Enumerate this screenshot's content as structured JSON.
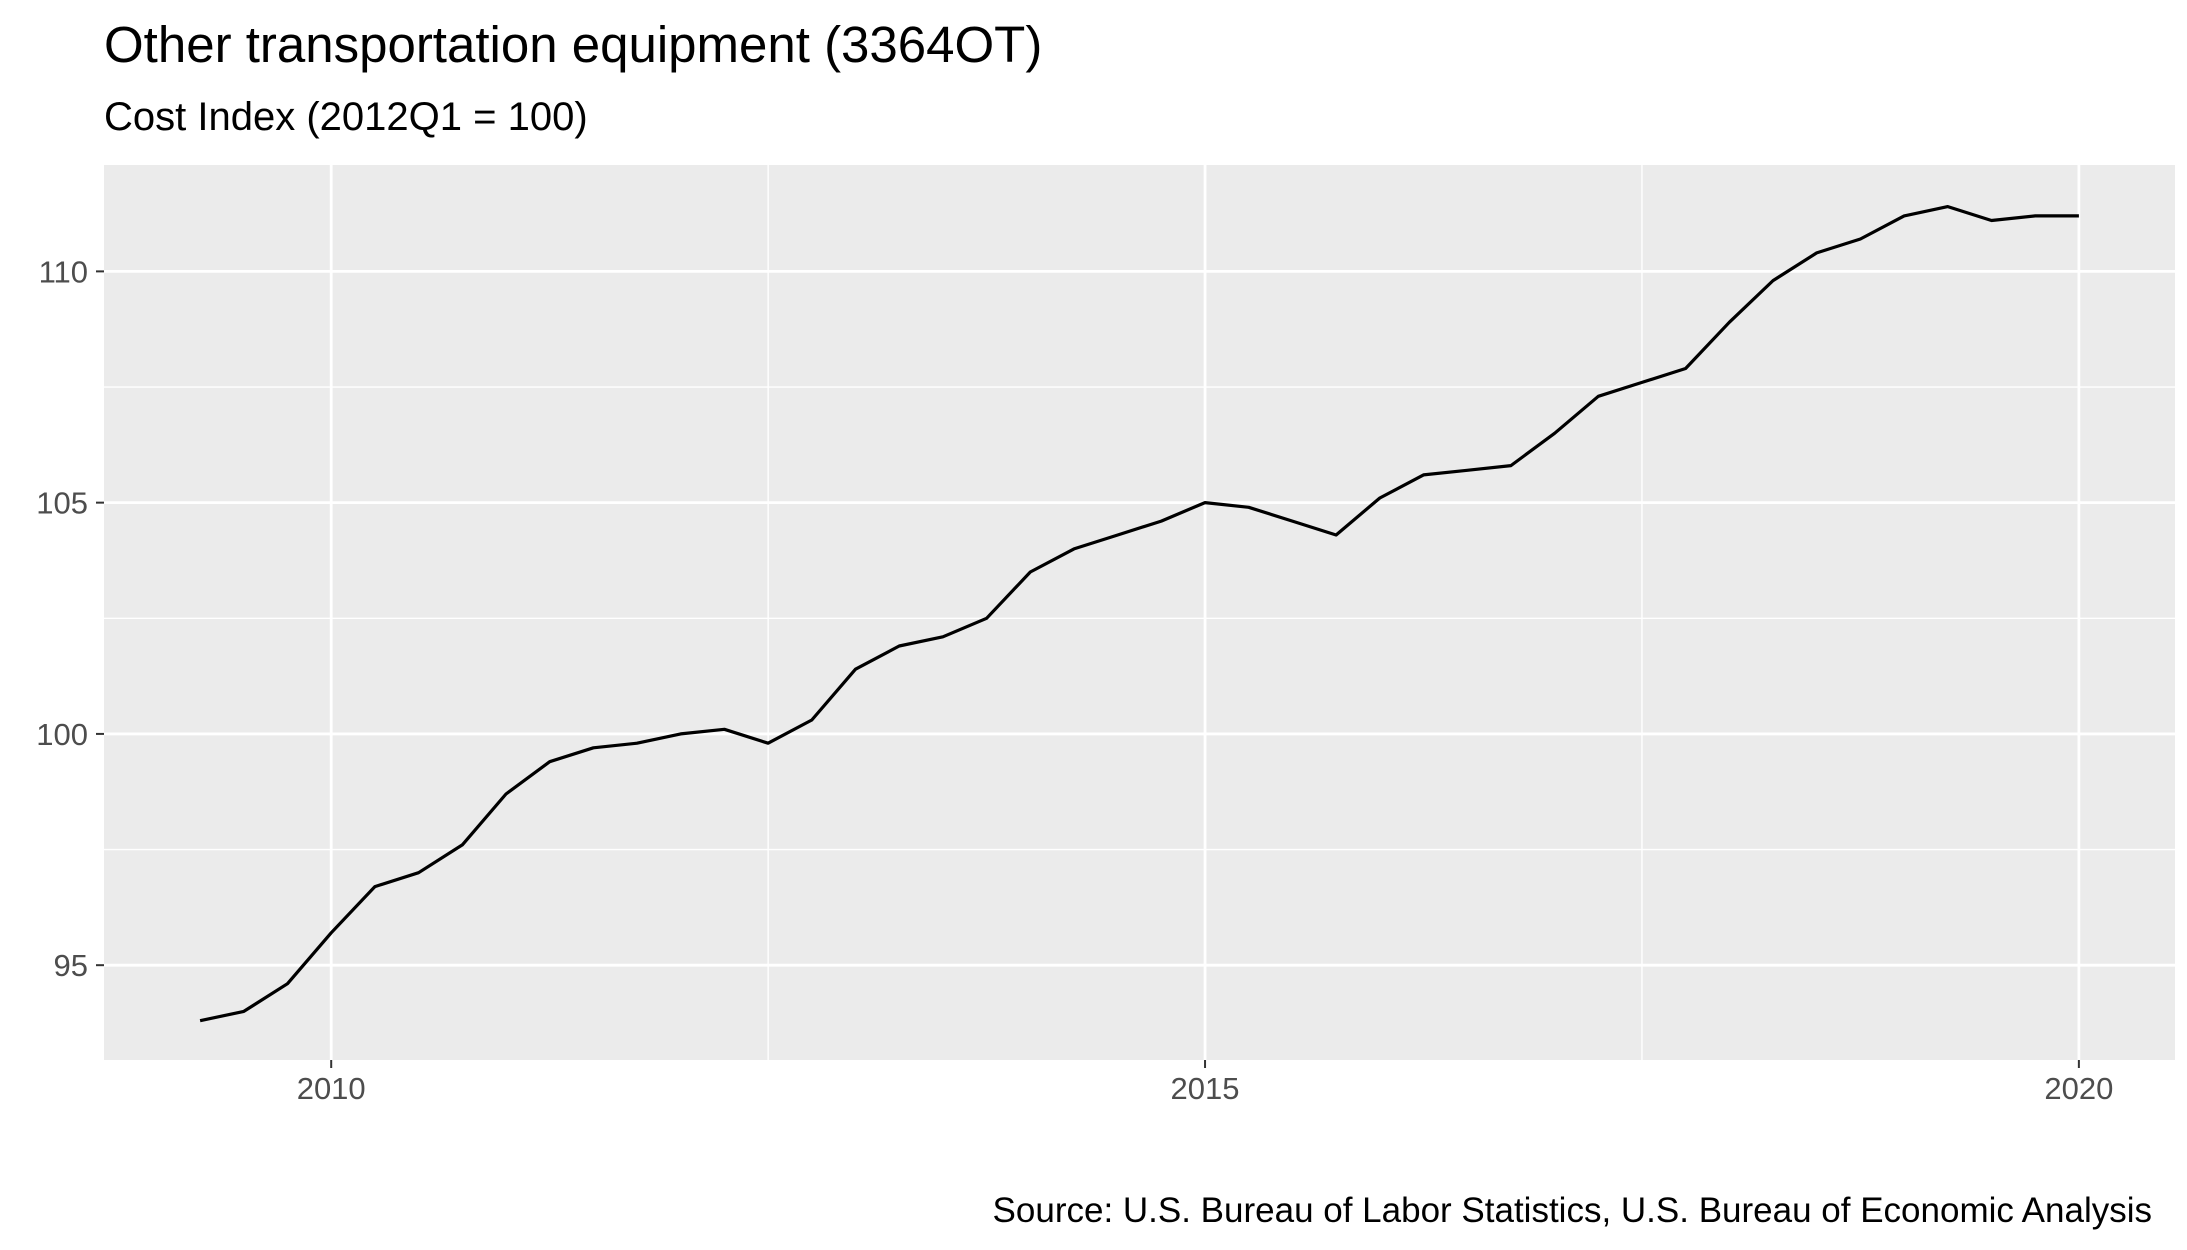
{
  "chart_data": {
    "type": "line",
    "title": "Other transportation equipment (3364OT)",
    "subtitle": "Cost Index (2012Q1 = 100)",
    "caption": "Source: U.S. Bureau of Labor Statistics, U.S. Bureau of Economic Analysis",
    "xlabel": "",
    "ylabel": "",
    "x_ticks": [
      2010,
      2015,
      2020
    ],
    "y_ticks": [
      95,
      100,
      105,
      110
    ],
    "xlim": [
      2008.7,
      2020.55
    ],
    "ylim": [
      92.95,
      112.3
    ],
    "grid": true,
    "legend": "none",
    "colors": {
      "panel": "#ebebeb",
      "grid": "#ffffff",
      "line": "#000000",
      "tick_text": "#4d4d4d"
    },
    "series": [
      {
        "x": [
          2009.25,
          2009.5,
          2009.75,
          2010.0,
          2010.25,
          2010.5,
          2010.75,
          2011.0,
          2011.25,
          2011.5,
          2011.75,
          2012.0,
          2012.25,
          2012.5,
          2012.75,
          2013.0,
          2013.25,
          2013.5,
          2013.75,
          2014.0,
          2014.25,
          2014.5,
          2014.75,
          2015.0,
          2015.25,
          2015.5,
          2015.75,
          2016.0,
          2016.25,
          2016.5,
          2016.75,
          2017.0,
          2017.25,
          2017.5,
          2017.75,
          2018.0,
          2018.25,
          2018.5,
          2018.75,
          2019.0,
          2019.25,
          2019.5,
          2019.75,
          2020.0
        ],
        "y": [
          93.8,
          94.0,
          94.6,
          95.7,
          96.7,
          97.0,
          97.6,
          98.7,
          99.4,
          99.7,
          99.8,
          100.0,
          100.1,
          99.8,
          100.3,
          101.4,
          101.9,
          102.1,
          102.5,
          103.5,
          104.0,
          104.3,
          104.6,
          105.0,
          104.9,
          104.6,
          104.3,
          105.1,
          105.6,
          105.7,
          105.8,
          106.5,
          107.3,
          107.6,
          107.9,
          108.9,
          109.8,
          110.4,
          110.7,
          111.2,
          111.4,
          111.1,
          111.2,
          111.2
        ]
      }
    ]
  }
}
